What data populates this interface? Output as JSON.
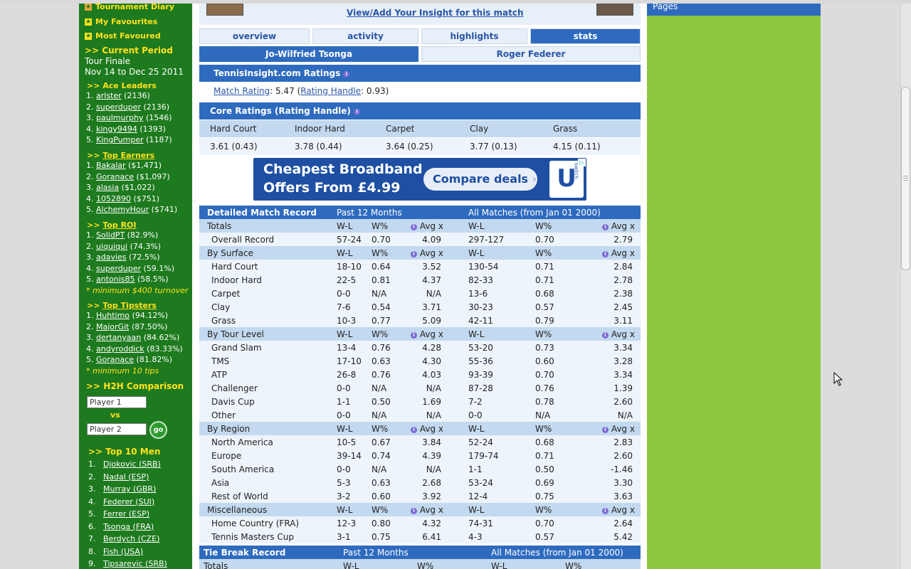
{
  "left_sidebar": {
    "links_top": [
      "Tournament Diary",
      "My Favourites",
      "Most Favoured"
    ],
    "current_period": {
      "title": ">> Current Period",
      "name": "Tour Finale",
      "dates": "Nov 14 to Dec 25 2011"
    },
    "ace_leaders": {
      "title": ">> Ace Leaders",
      "items": [
        {
          "n": "1.",
          "name": "arlster",
          "val": "(2136)"
        },
        {
          "n": "2.",
          "name": "superduper",
          "val": "(2136)"
        },
        {
          "n": "3.",
          "name": "paulmurphy",
          "val": "(1546)"
        },
        {
          "n": "4.",
          "name": "kingy9494",
          "val": "(1393)"
        },
        {
          "n": "5.",
          "name": "KingPumper",
          "val": "(1187)"
        }
      ]
    },
    "top_earners": {
      "prefix": ">>",
      "title": "Top Earners",
      "items": [
        {
          "n": "1.",
          "name": "Bakalar",
          "val": "($1,471)"
        },
        {
          "n": "2.",
          "name": "Goranace",
          "val": "($1,097)"
        },
        {
          "n": "3.",
          "name": "alasia",
          "val": "($1,022)"
        },
        {
          "n": "4.",
          "name": "1052890",
          "val": "($751)"
        },
        {
          "n": "5.",
          "name": "AlchemyHour",
          "val": "($741)"
        }
      ]
    },
    "top_roi": {
      "prefix": ">>",
      "title": "Top ROI",
      "items": [
        {
          "n": "1.",
          "name": "SolidPT",
          "val": "(82.9%)"
        },
        {
          "n": "2.",
          "name": "uiquiqui",
          "val": "(74.3%)"
        },
        {
          "n": "3.",
          "name": "adavies",
          "val": "(72.5%)"
        },
        {
          "n": "4.",
          "name": "superduper",
          "val": "(59.1%)"
        },
        {
          "n": "5.",
          "name": "antonis85",
          "val": "(58.5%)"
        }
      ],
      "note": "* minimum $400 turnover"
    },
    "top_tipsters": {
      "prefix": ">>",
      "title": "Top Tipsters",
      "items": [
        {
          "n": "1.",
          "name": "Huhtimo",
          "val": "(94.12%)"
        },
        {
          "n": "2.",
          "name": "MajorGit",
          "val": "(87.50%)"
        },
        {
          "n": "3.",
          "name": "dertanyaan",
          "val": "(84.62%)"
        },
        {
          "n": "4.",
          "name": "andyroddick",
          "val": "(83.33%)"
        },
        {
          "n": "5.",
          "name": "Goranace",
          "val": "(81.82%)"
        }
      ],
      "note": "* minimum 10 tips"
    },
    "h2h": {
      "title": ">> H2H Comparison",
      "player1": "Player 1",
      "vs": "vs",
      "player2": "Player 2",
      "go": "go"
    },
    "top10": {
      "title": ">> Top 10 Men",
      "items": [
        {
          "n": "1.",
          "name": "Djokovic (SRB)"
        },
        {
          "n": "2.",
          "name": "Nadal (ESP)"
        },
        {
          "n": "3.",
          "name": "Murray (GBR)"
        },
        {
          "n": "4.",
          "name": "Federer (SUI)"
        },
        {
          "n": "5.",
          "name": "Ferrer (ESP)"
        },
        {
          "n": "6.",
          "name": "Tsonga (FRA)"
        },
        {
          "n": "7.",
          "name": "Berdych (CZE)"
        },
        {
          "n": "8.",
          "name": "Fish (USA)"
        },
        {
          "n": "9.",
          "name": "Tipsarevic (SRB)"
        }
      ]
    }
  },
  "main": {
    "insight_link": "View/Add Your Insight for this match",
    "tabs": [
      "overview",
      "activity",
      "highlights",
      "stats"
    ],
    "players": [
      "Jo-Wilfried Tsonga",
      "Roger Federer"
    ],
    "ratings": {
      "title": "TennisInsight.com Ratings",
      "match_rating_label": "Match Rating",
      "match_rating_value": ": 5.47 (",
      "rating_handle_label": "Rating Handle",
      "rating_handle_value": ": 0.93)"
    },
    "core": {
      "title": "Core Ratings (Rating Handle)",
      "headers": [
        "Hard Court",
        "Indoor Hard",
        "Carpet",
        "Clay",
        "Grass"
      ],
      "values": [
        "3.61 (0.43)",
        "3.78 (0.44)",
        "3.64 (0.25)",
        "3.77 (0.13)",
        "4.15 (0.11)"
      ]
    },
    "ad": {
      "line1": "Cheapest Broadband",
      "line2": "Offers From £4.99",
      "button": "Compare deals",
      "brand": "U",
      "brand_small": "Switch"
    },
    "detailed": {
      "title": "Detailed Match Record",
      "col_past": "Past 12 Months",
      "col_all": "All Matches (from Jan 01 2000)",
      "sections": [
        {
          "name": "Totals",
          "rows": [
            [
              "Overall Record",
              "57-24",
              "0.70",
              "4.09",
              "297-127",
              "0.70",
              "2.79"
            ]
          ]
        },
        {
          "name": "By Surface",
          "rows": [
            [
              "Hard Court",
              "18-10",
              "0.64",
              "3.52",
              "130-54",
              "0.71",
              "2.84"
            ],
            [
              "Indoor Hard",
              "22-5",
              "0.81",
              "4.37",
              "82-33",
              "0.71",
              "2.78"
            ],
            [
              "Carpet",
              "0-0",
              "N/A",
              "N/A",
              "13-6",
              "0.68",
              "2.38"
            ],
            [
              "Clay",
              "7-6",
              "0.54",
              "3.71",
              "30-23",
              "0.57",
              "2.45"
            ],
            [
              "Grass",
              "10-3",
              "0.77",
              "5.09",
              "42-11",
              "0.79",
              "3.11"
            ]
          ]
        },
        {
          "name": "By Tour Level",
          "rows": [
            [
              "Grand Slam",
              "13-4",
              "0.76",
              "4.28",
              "53-20",
              "0.73",
              "3.34"
            ],
            [
              "TMS",
              "17-10",
              "0.63",
              "4.30",
              "55-36",
              "0.60",
              "3.28"
            ],
            [
              "ATP",
              "26-8",
              "0.76",
              "4.03",
              "93-39",
              "0.70",
              "3.34"
            ],
            [
              "Challenger",
              "0-0",
              "N/A",
              "N/A",
              "87-28",
              "0.76",
              "1.39"
            ],
            [
              "Davis Cup",
              "1-1",
              "0.50",
              "1.69",
              "7-2",
              "0.78",
              "2.60"
            ],
            [
              "Other",
              "0-0",
              "N/A",
              "N/A",
              "0-0",
              "N/A",
              "N/A"
            ]
          ]
        },
        {
          "name": "By Region",
          "rows": [
            [
              "North America",
              "10-5",
              "0.67",
              "3.84",
              "52-24",
              "0.68",
              "2.83"
            ],
            [
              "Europe",
              "39-14",
              "0.74",
              "4.39",
              "179-74",
              "0.71",
              "2.60"
            ],
            [
              "South America",
              "0-0",
              "N/A",
              "N/A",
              "1-1",
              "0.50",
              "-1.46"
            ],
            [
              "Asia",
              "5-3",
              "0.63",
              "2.68",
              "53-24",
              "0.69",
              "3.30"
            ],
            [
              "Rest of World",
              "3-2",
              "0.60",
              "3.92",
              "12-4",
              "0.75",
              "3.63"
            ]
          ]
        },
        {
          "name": "Miscellaneous",
          "rows": [
            [
              "Home Country (FRA)",
              "12-3",
              "0.80",
              "4.32",
              "74-31",
              "0.70",
              "2.64"
            ],
            [
              "Tennis Masters Cup",
              "3-1",
              "0.75",
              "6.41",
              "4-3",
              "0.57",
              "5.42"
            ]
          ]
        }
      ],
      "hdr_wl": "W-L",
      "hdr_w": "W%",
      "hdr_avg": "Avg x"
    },
    "tiebreak": {
      "title": "Tie Break Record",
      "col_past": "Past 12 Months",
      "col_all": "All Matches (from Jan 01 2000)",
      "row": "Totals",
      "wl": "W-L",
      "w": "W%"
    }
  },
  "right": {
    "pages": "Pages"
  },
  "colors": {
    "sidebar": "#1e7a1e",
    "header_blue": "#2e6bbf",
    "subheader": "#c3d9ef",
    "yellow": "#ffe21a",
    "page_green": "#8dc63f"
  }
}
